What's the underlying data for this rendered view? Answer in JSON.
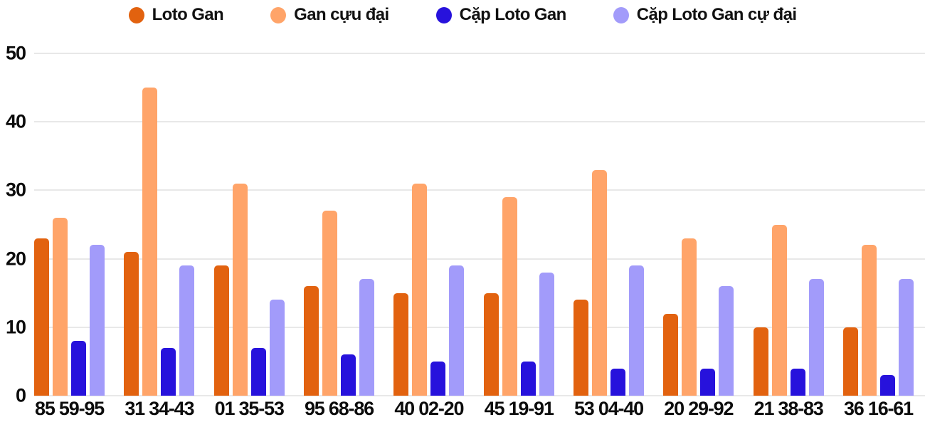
{
  "chart_data": {
    "type": "bar",
    "title": "",
    "xlabel": "",
    "ylabel": "",
    "categories": [
      "85 59-95",
      "31 34-43",
      "01 35-53",
      "95 68-86",
      "40 02-20",
      "45 19-91",
      "53 04-40",
      "20 29-92",
      "21 38-83",
      "36 16-61"
    ],
    "series": [
      {
        "name": "Loto Gan",
        "color": "#e2620f",
        "values": [
          23,
          21,
          19,
          16,
          15,
          15,
          14,
          12,
          10,
          10
        ]
      },
      {
        "name": "Gan cựu đại",
        "color": "#ffa469",
        "values": [
          26,
          45,
          31,
          27,
          31,
          29,
          33,
          23,
          25,
          22
        ]
      },
      {
        "name": "Cặp Loto Gan",
        "color": "#2712dc",
        "values": [
          8,
          7,
          7,
          6,
          5,
          5,
          4,
          4,
          4,
          3
        ]
      },
      {
        "name": "Cặp Loto Gan cự đại",
        "color": "#a29bfa",
        "values": [
          22,
          19,
          14,
          17,
          19,
          18,
          19,
          16,
          17,
          17
        ]
      }
    ],
    "ylim": [
      0,
      50
    ],
    "yticks": [
      0,
      10,
      20,
      30,
      40,
      50
    ],
    "grid": true,
    "legend_position": "top",
    "colors": {
      "grid": "#e8e8e8",
      "text": "#0c0c0c",
      "background": "#ffffff"
    }
  }
}
